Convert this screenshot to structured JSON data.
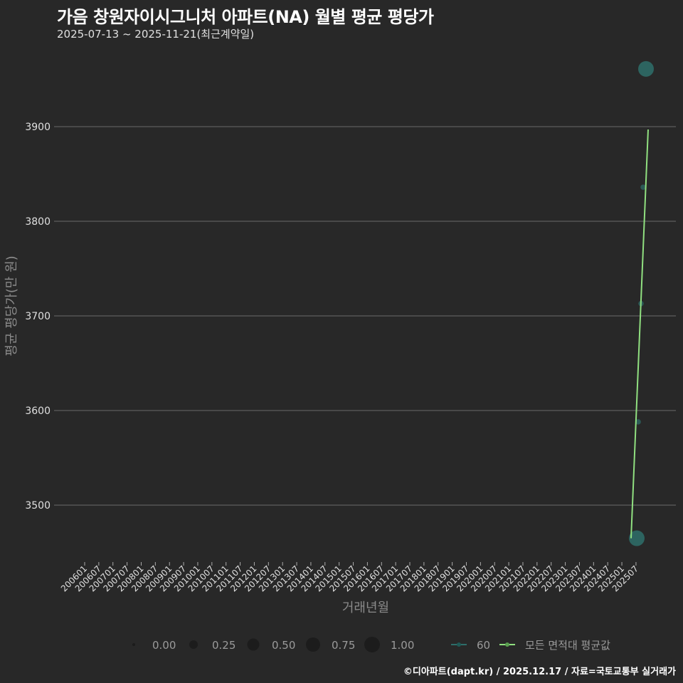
{
  "header": {
    "title": "가음 창원자이시그니처 아파트(NA) 월별 평균 평당가",
    "subtitle": "2025-07-13 ~ 2025-11-21(최근계약일)"
  },
  "footer": {
    "credit": "©디아파트(dapt.kr) / 2025.12.17 / 자료=국토교통부 실거래가"
  },
  "colors": {
    "background": "#282828",
    "grid": "#6a6a6a",
    "series_60": "#2e6e6a",
    "series_avg": "#90e080",
    "size_legend": "#1c1c1c"
  },
  "chart_data": {
    "type": "line",
    "title": "가음 창원자이시그니처 아파트(NA) 월별 평균 평당가",
    "subtitle": "2025-07-13 ~ 2025-11-21(최근계약일)",
    "xlabel": "거래년월",
    "ylabel": "평균 평당가(만 원)",
    "ylim": [
      3445,
      3975
    ],
    "yticks": [
      3500,
      3600,
      3700,
      3800,
      3900
    ],
    "grid": true,
    "legend_position": "bottom",
    "x_ticks": [
      "200601",
      "200607",
      "200701",
      "200707",
      "200801",
      "200807",
      "200901",
      "200907",
      "201001",
      "201007",
      "201101",
      "201107",
      "201201",
      "201207",
      "201301",
      "201307",
      "201401",
      "201407",
      "201501",
      "201507",
      "201601",
      "201607",
      "201701",
      "201707",
      "201801",
      "201807",
      "201901",
      "201907",
      "202001",
      "202007",
      "202101",
      "202107",
      "202201",
      "202207",
      "202301",
      "202307",
      "202401",
      "202407",
      "202501",
      "202507"
    ],
    "size_legend": {
      "title": "",
      "values": [
        "0.00",
        "0.25",
        "0.50",
        "0.75",
        "1.00"
      ]
    },
    "series": [
      {
        "name": "60",
        "kind": "points",
        "color": "#2e6e6a",
        "points": [
          {
            "x": "202507",
            "y": 3465,
            "size": 1.0
          },
          {
            "x": "202508",
            "y": 3588,
            "size": 0.1
          },
          {
            "x": "202509",
            "y": 3713,
            "size": 0.1
          },
          {
            "x": "202510",
            "y": 3836,
            "size": 0.1
          },
          {
            "x": "202511",
            "y": 3961,
            "size": 1.0
          }
        ]
      },
      {
        "name": "모든 면적대 평균값",
        "kind": "line",
        "color": "#90e080",
        "points": [
          {
            "x": "202507",
            "y": 3465
          },
          {
            "x": "202511",
            "y": 3897
          }
        ]
      }
    ]
  },
  "legend": {
    "size_items": [
      "0.00",
      "0.25",
      "0.50",
      "0.75",
      "1.00"
    ],
    "series_items": [
      "60",
      "모든 면적대 평균값"
    ]
  }
}
